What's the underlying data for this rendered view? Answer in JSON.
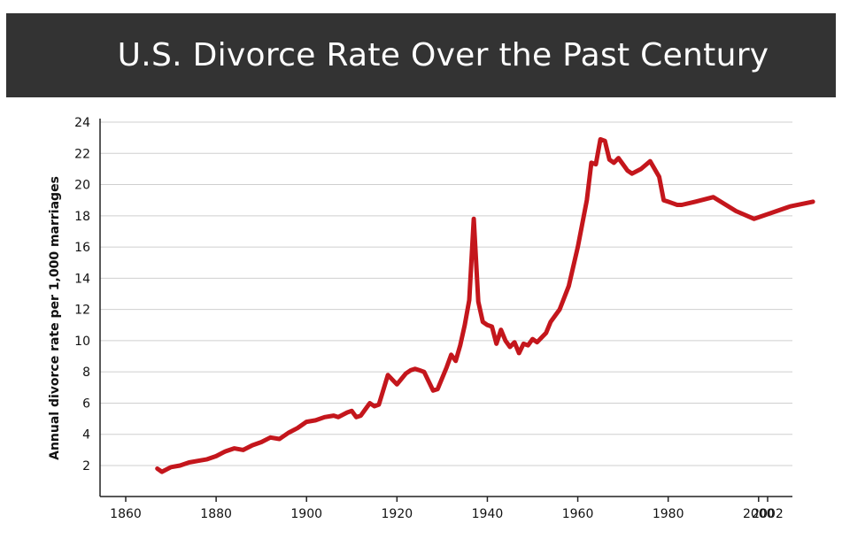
{
  "header": {
    "title": "U.S. Divorce Rate Over the Past Century"
  },
  "chart_data": {
    "type": "line",
    "title": "U.S. Divorce Rate Over the Past Century",
    "xlabel": "",
    "ylabel": "Annual divorce rate per 1,000 marriages",
    "xlim": [
      1860,
      2002
    ],
    "ylim": [
      0,
      24
    ],
    "x_ticks": [
      1860,
      1880,
      1900,
      1920,
      1940,
      1960,
      1980,
      2000,
      2002
    ],
    "x_tick_labels": [
      "1860",
      "1880",
      "1900",
      "1920",
      "1940",
      "1960",
      "1980",
      "2000",
      "2002"
    ],
    "y_ticks": [
      2,
      4,
      6,
      8,
      10,
      12,
      14,
      16,
      18,
      20,
      22,
      24
    ],
    "y_tick_labels": [
      "2",
      "4",
      "6",
      "8",
      "10",
      "12",
      "14",
      "16",
      "18",
      "20",
      "22",
      "24"
    ],
    "grid": true,
    "line_color": "#c4161c",
    "series": [
      {
        "x": [
          1867,
          1868,
          1870,
          1872,
          1874,
          1876,
          1878,
          1880,
          1882,
          1884,
          1886,
          1888,
          1890,
          1892,
          1894,
          1896,
          1898,
          1900,
          1902,
          1904,
          1906,
          1907,
          1909,
          1910,
          1911,
          1912,
          1913,
          1914,
          1915,
          1916,
          1918,
          1920,
          1922,
          1923,
          1924,
          1925,
          1926,
          1928,
          1929,
          1931,
          1932,
          1933,
          1934,
          1935,
          1936,
          1937,
          1938,
          1939,
          1940,
          1941,
          1942,
          1943,
          1944,
          1945,
          1946,
          1947,
          1948,
          1949,
          1950,
          1951,
          1952,
          1953,
          1954,
          1956,
          1958,
          1960,
          1962,
          1963,
          1964,
          1965,
          1966,
          1967,
          1968,
          1969,
          1970,
          1971,
          1972,
          1974,
          1976,
          1978,
          1979,
          1980,
          1981,
          1982,
          1983,
          1986,
          1990,
          1995,
          1999,
          2003,
          2007,
          2012
        ],
        "y": [
          1.8,
          1.6,
          1.9,
          2.0,
          2.2,
          2.3,
          2.4,
          2.6,
          2.9,
          3.1,
          3.0,
          3.3,
          3.5,
          3.8,
          3.7,
          4.1,
          4.4,
          4.8,
          4.9,
          5.1,
          5.2,
          5.1,
          5.4,
          5.5,
          5.1,
          5.2,
          5.6,
          6.0,
          5.8,
          5.9,
          7.8,
          7.2,
          7.9,
          8.1,
          8.2,
          8.1,
          8.0,
          6.8,
          6.9,
          8.3,
          9.1,
          8.7,
          9.7,
          11.0,
          12.6,
          17.8,
          12.5,
          11.2,
          11.0,
          10.9,
          9.8,
          10.7,
          10.0,
          9.6,
          9.9,
          9.2,
          9.8,
          9.7,
          10.1,
          9.9,
          10.2,
          10.5,
          11.2,
          12.0,
          13.5,
          16.0,
          19.0,
          21.4,
          21.3,
          22.9,
          22.8,
          21.6,
          21.4,
          21.7,
          21.3,
          20.9,
          20.7,
          21.0,
          21.5,
          20.5,
          19.0,
          18.9,
          18.8,
          18.7,
          18.7,
          18.9,
          19.2,
          18.3,
          17.8,
          18.2,
          18.6,
          18.9
        ]
      }
    ]
  }
}
